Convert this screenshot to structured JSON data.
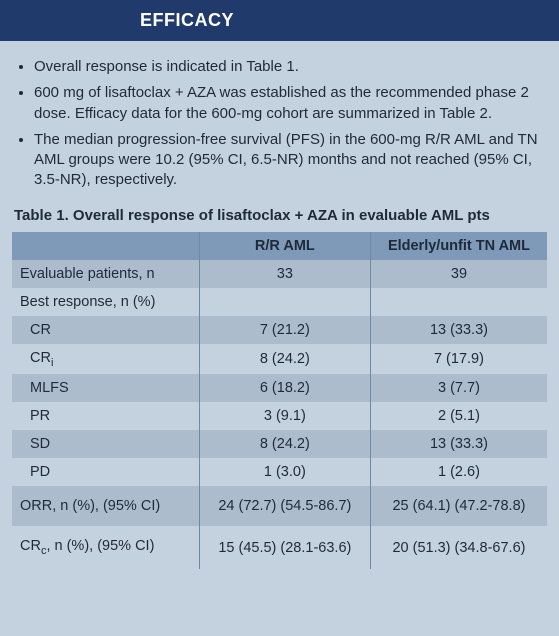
{
  "colors": {
    "header_bg": "#203a6b",
    "page_bg": "#c4d1de",
    "text": "#1e2a3a",
    "table_header_bg": "#7f99b8",
    "row_alt_bg": "#adbccd",
    "row_bg": "#c4d1de",
    "vline": "#6f88a6"
  },
  "header": {
    "title": "EFFICACY"
  },
  "bullets": [
    "Overall response is indicated in Table 1.",
    "600 mg of lisaftoclax + AZA was established as the recommended phase 2 dose. Efficacy data for the 600-mg cohort are summarized in Table 2.",
    "The median progression-free survival (PFS) in the 600-mg R/R AML and TN AML groups were 10.2 (95% CI, 6.5-NR) months and not reached (95% CI, 3.5-NR), respectively."
  ],
  "table": {
    "title": "Table 1. Overall response of lisaftoclax + AZA in evaluable AML pts",
    "columns": [
      "",
      "R/R AML",
      "Elderly/unfit TN AML"
    ],
    "rows": [
      {
        "label": "Evaluable patients, n",
        "c1": "33",
        "c2": "39",
        "indent": false
      },
      {
        "label": "Best response, n (%)",
        "c1": "",
        "c2": "",
        "indent": false
      },
      {
        "label": "CR",
        "c1": "7 (21.2)",
        "c2": "13 (33.3)",
        "indent": true
      },
      {
        "label_html": "CR<sub>i</sub>",
        "c1": "8 (24.2)",
        "c2": "7 (17.9)",
        "indent": true
      },
      {
        "label": "MLFS",
        "c1": "6 (18.2)",
        "c2": "3 (7.7)",
        "indent": true
      },
      {
        "label": "PR",
        "c1": "3 (9.1)",
        "c2": "2 (5.1)",
        "indent": true
      },
      {
        "label": "SD",
        "c1": "8 (24.2)",
        "c2": "13 (33.3)",
        "indent": true
      },
      {
        "label": "PD",
        "c1": "1 (3.0)",
        "c2": "1 (2.6)",
        "indent": true
      }
    ],
    "summary_rows": [
      {
        "label": "ORR, n (%), (95% CI)",
        "c1": "24 (72.7) (54.5-86.7)",
        "c2": "25 (64.1) (47.2-78.8)"
      },
      {
        "label_html": "CR<sub>c</sub>,  n (%), (95% CI)",
        "c1": "15 (45.5) (28.1-63.6)",
        "c2": "20 (51.3) (34.8-67.6)"
      }
    ]
  }
}
